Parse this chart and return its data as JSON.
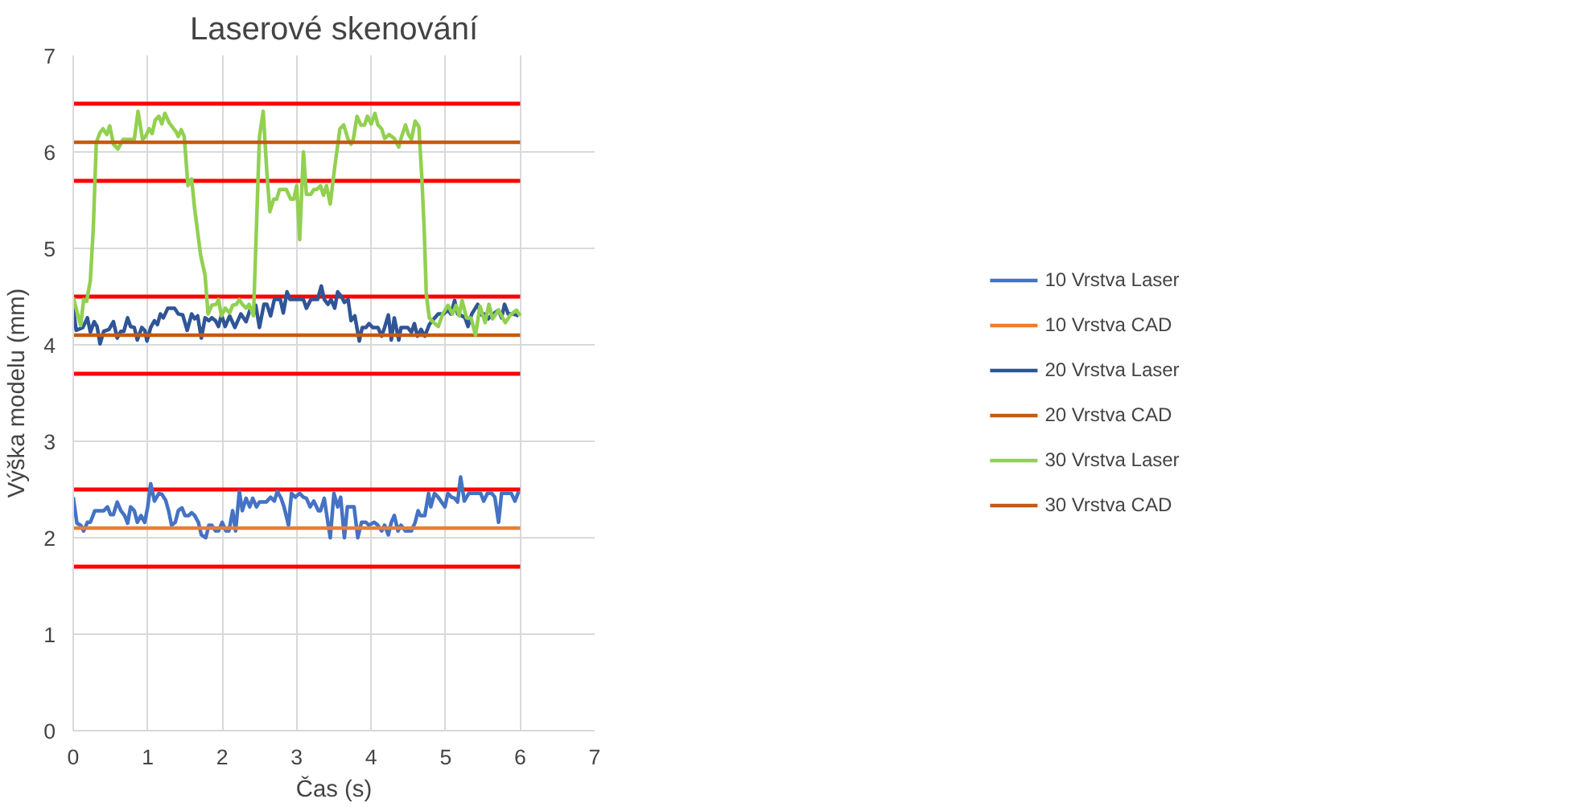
{
  "chart_data": {
    "type": "line",
    "title": "Laserové skenování",
    "xlabel": "Čas (s)",
    "ylabel": "Výška modelu (mm)",
    "xlim": [
      0,
      7
    ],
    "xticks": [
      0,
      1,
      2,
      3,
      4,
      5,
      6,
      7
    ],
    "ylim": [
      0,
      7
    ],
    "yticks": [
      0,
      1,
      2,
      3,
      4,
      5,
      6,
      7
    ],
    "grid": true,
    "legend": "right",
    "marker": "none",
    "line_style": "solid",
    "series": [
      {
        "name": "10 Vrstva Laser",
        "color": "#4472c4",
        "x": [
          0,
          0.05,
          0.1,
          0.14,
          0.19,
          0.23,
          0.29,
          0.41,
          0.46,
          0.5,
          0.54,
          0.59,
          0.64,
          0.69,
          0.73,
          0.77,
          0.82,
          0.86,
          0.91,
          0.96,
          1.0,
          1.04,
          1.09,
          1.15,
          1.19,
          1.24,
          1.28,
          1.32,
          1.37,
          1.41,
          1.46,
          1.5,
          1.55,
          1.59,
          1.63,
          1.68,
          1.72,
          1.78,
          1.82,
          1.86,
          1.91,
          1.95,
          2.0,
          2.05,
          2.09,
          2.14,
          2.18,
          2.23,
          2.27,
          2.32,
          2.37,
          2.41,
          2.46,
          2.5,
          2.59,
          2.65,
          2.7,
          2.74,
          2.79,
          2.83,
          2.89,
          2.93,
          2.98,
          3.04,
          3.09,
          3.13,
          3.18,
          3.23,
          3.29,
          3.32,
          3.37,
          3.41,
          3.45,
          3.5,
          3.55,
          3.59,
          3.64,
          3.68,
          3.77,
          3.82,
          3.87,
          3.93,
          3.97,
          4.04,
          4.09,
          4.14,
          4.18,
          4.23,
          4.27,
          4.31,
          4.36,
          4.4,
          4.46,
          4.54,
          4.59,
          4.63,
          4.66,
          4.72,
          4.77,
          4.8,
          4.85,
          4.9,
          4.99,
          5.03,
          5.08,
          5.12,
          5.16,
          5.2,
          5.25,
          5.31,
          5.47,
          5.51,
          5.56,
          5.62,
          5.66,
          5.71,
          5.75,
          5.88,
          5.93,
          5.98
        ],
        "values": [
          2.42,
          2.15,
          2.13,
          2.07,
          2.16,
          2.16,
          2.28,
          2.28,
          2.32,
          2.24,
          2.24,
          2.37,
          2.28,
          2.23,
          2.15,
          2.32,
          2.28,
          2.16,
          2.23,
          2.16,
          2.32,
          2.56,
          2.38,
          2.46,
          2.45,
          2.39,
          2.28,
          2.13,
          2.16,
          2.28,
          2.31,
          2.23,
          2.23,
          2.26,
          2.23,
          2.16,
          2.03,
          2.0,
          2.13,
          2.13,
          2.07,
          2.07,
          2.16,
          2.07,
          2.07,
          2.28,
          2.07,
          2.48,
          2.28,
          2.41,
          2.32,
          2.41,
          2.32,
          2.37,
          2.37,
          2.42,
          2.38,
          2.48,
          2.41,
          2.32,
          2.13,
          2.46,
          2.42,
          2.46,
          2.42,
          2.41,
          2.32,
          2.38,
          2.28,
          2.28,
          2.41,
          2.2,
          2.0,
          2.46,
          2.32,
          2.42,
          2.0,
          2.32,
          2.32,
          2.0,
          2.16,
          2.16,
          2.13,
          2.16,
          2.13,
          2.07,
          2.13,
          2.03,
          2.16,
          2.23,
          2.07,
          2.13,
          2.07,
          2.07,
          2.16,
          2.28,
          2.23,
          2.23,
          2.46,
          2.32,
          2.46,
          2.42,
          2.32,
          2.46,
          2.42,
          2.41,
          2.37,
          2.63,
          2.38,
          2.46,
          2.46,
          2.38,
          2.46,
          2.46,
          2.42,
          2.16,
          2.46,
          2.46,
          2.38,
          2.48
        ]
      },
      {
        "name": "10 Vrstva CAD",
        "color": "#ed7d31",
        "x": [
          0,
          6
        ],
        "values": [
          2.1,
          2.1
        ]
      },
      {
        "name": "20 Vrstva Laser",
        "color": "#2f5597",
        "x": [
          0,
          0.04,
          0.13,
          0.19,
          0.23,
          0.28,
          0.32,
          0.36,
          0.41,
          0.48,
          0.54,
          0.59,
          0.64,
          0.68,
          0.73,
          0.77,
          0.82,
          0.86,
          0.92,
          0.96,
          0.99,
          1.04,
          1.09,
          1.13,
          1.17,
          1.21,
          1.27,
          1.36,
          1.41,
          1.47,
          1.53,
          1.59,
          1.63,
          1.67,
          1.72,
          1.77,
          1.82,
          1.86,
          1.91,
          1.95,
          1.99,
          2.04,
          2.1,
          2.17,
          2.25,
          2.32,
          2.38,
          2.42,
          2.45,
          2.5,
          2.56,
          2.6,
          2.65,
          2.7,
          2.78,
          2.82,
          2.87,
          2.91,
          3.09,
          3.13,
          3.19,
          3.28,
          3.33,
          3.37,
          3.42,
          3.46,
          3.51,
          3.55,
          3.6,
          3.64,
          3.69,
          3.73,
          3.78,
          3.84,
          3.88,
          3.93,
          3.97,
          4.02,
          4.09,
          4.14,
          4.18,
          4.23,
          4.27,
          4.31,
          4.37,
          4.4,
          4.49,
          4.54,
          4.58,
          4.62,
          4.67,
          4.72,
          4.78,
          4.82,
          4.9,
          4.97,
          5.03,
          5.07,
          5.12,
          5.16,
          5.22,
          5.26,
          5.3,
          5.35,
          5.43,
          5.48,
          5.52,
          5.57,
          5.62,
          5.71,
          5.75,
          5.79,
          5.84,
          5.91,
          5.98
        ],
        "values": [
          4.38,
          4.15,
          4.18,
          4.28,
          4.13,
          4.24,
          4.19,
          4.01,
          4.14,
          4.16,
          4.24,
          4.07,
          4.14,
          4.14,
          4.28,
          4.19,
          4.18,
          4.05,
          4.18,
          4.15,
          4.04,
          4.18,
          4.25,
          4.21,
          4.32,
          4.28,
          4.38,
          4.38,
          4.32,
          4.31,
          4.15,
          4.32,
          4.27,
          4.3,
          4.07,
          4.28,
          4.25,
          4.28,
          4.25,
          4.19,
          4.31,
          4.19,
          4.3,
          4.18,
          4.32,
          4.24,
          4.38,
          4.32,
          4.41,
          4.18,
          4.42,
          4.42,
          4.3,
          4.47,
          4.47,
          4.33,
          4.55,
          4.47,
          4.47,
          4.38,
          4.47,
          4.47,
          4.61,
          4.47,
          4.42,
          4.47,
          4.38,
          4.55,
          4.5,
          4.44,
          4.47,
          4.25,
          4.3,
          4.04,
          4.18,
          4.18,
          4.22,
          4.18,
          4.18,
          4.09,
          4.18,
          4.31,
          4.05,
          4.28,
          4.05,
          4.18,
          4.18,
          4.13,
          4.22,
          4.09,
          4.16,
          4.09,
          4.21,
          4.25,
          4.32,
          4.32,
          4.36,
          4.32,
          4.46,
          4.32,
          4.3,
          4.28,
          4.19,
          4.32,
          4.42,
          4.31,
          4.32,
          4.27,
          4.31,
          4.36,
          4.28,
          4.42,
          4.32,
          4.32,
          4.3
        ]
      },
      {
        "name": "20 Vrstva CAD",
        "color": "#c55a11",
        "x": [
          0,
          6
        ],
        "values": [
          4.1,
          4.1
        ]
      },
      {
        "name": "30 Vrstva Laser",
        "color": "#92d050",
        "x": [
          0,
          0.1,
          0.14,
          0.18,
          0.23,
          0.27,
          0.31,
          0.36,
          0.4,
          0.45,
          0.49,
          0.54,
          0.6,
          0.67,
          0.82,
          0.87,
          0.93,
          0.97,
          1.02,
          1.06,
          1.1,
          1.15,
          1.19,
          1.23,
          1.29,
          1.38,
          1.41,
          1.45,
          1.49,
          1.54,
          1.59,
          1.63,
          1.71,
          1.77,
          1.81,
          1.86,
          1.92,
          1.95,
          1.99,
          2.04,
          2.1,
          2.14,
          2.19,
          2.23,
          2.27,
          2.32,
          2.36,
          2.42,
          2.5,
          2.55,
          2.6,
          2.64,
          2.69,
          2.73,
          2.77,
          2.86,
          2.92,
          2.96,
          3.0,
          3.04,
          3.09,
          3.13,
          3.19,
          3.23,
          3.27,
          3.32,
          3.36,
          3.4,
          3.45,
          3.51,
          3.58,
          3.63,
          3.69,
          3.73,
          3.76,
          3.81,
          3.86,
          3.91,
          3.95,
          4.0,
          4.05,
          4.09,
          4.14,
          4.18,
          4.24,
          4.31,
          4.37,
          4.4,
          4.46,
          4.5,
          4.54,
          4.59,
          4.64,
          4.68,
          4.71,
          4.74,
          4.78,
          4.84,
          4.9,
          4.96,
          5.03,
          5.09,
          5.14,
          5.18,
          5.22,
          5.28,
          5.34,
          5.4,
          5.46,
          5.53,
          5.58,
          5.63,
          5.71,
          5.8,
          5.87,
          5.95,
          6.0
        ],
        "values": [
          4.49,
          4.2,
          4.47,
          4.45,
          4.67,
          5.22,
          6.1,
          6.2,
          6.24,
          6.18,
          6.27,
          6.08,
          6.03,
          6.13,
          6.13,
          6.42,
          6.13,
          6.16,
          6.24,
          6.19,
          6.33,
          6.37,
          6.29,
          6.4,
          6.3,
          6.21,
          6.16,
          6.23,
          6.16,
          5.65,
          5.72,
          5.41,
          4.93,
          4.72,
          4.32,
          4.41,
          4.42,
          4.47,
          4.3,
          4.38,
          4.33,
          4.41,
          4.42,
          4.47,
          4.42,
          4.38,
          4.42,
          4.3,
          6.16,
          6.42,
          5.78,
          5.38,
          5.51,
          5.51,
          5.61,
          5.61,
          5.51,
          5.51,
          5.65,
          5.09,
          6.0,
          5.56,
          5.56,
          5.61,
          5.61,
          5.65,
          5.55,
          5.65,
          5.46,
          5.84,
          6.24,
          6.28,
          6.13,
          6.08,
          6.13,
          6.37,
          6.28,
          6.28,
          6.37,
          6.29,
          6.4,
          6.28,
          6.24,
          6.14,
          6.18,
          6.14,
          6.05,
          6.14,
          6.28,
          6.18,
          6.13,
          6.32,
          6.26,
          5.73,
          5.22,
          4.52,
          4.28,
          4.23,
          4.19,
          4.32,
          4.41,
          4.32,
          4.41,
          4.3,
          4.46,
          4.28,
          4.28,
          4.1,
          4.4,
          4.23,
          4.42,
          4.27,
          4.36,
          4.23,
          4.31,
          4.36,
          4.3
        ]
      },
      {
        "name": "30 Vrstva CAD",
        "color": "#c55a11",
        "x": [
          0,
          6
        ],
        "values": [
          6.1,
          6.1
        ]
      }
    ],
    "ref_lines": [
      {
        "axis": "y",
        "value": 1.7,
        "color": "#ff0000"
      },
      {
        "axis": "y",
        "value": 2.5,
        "color": "#ff0000"
      },
      {
        "axis": "y",
        "value": 3.7,
        "color": "#ff0000"
      },
      {
        "axis": "y",
        "value": 4.5,
        "color": "#ff0000"
      },
      {
        "axis": "y",
        "value": 5.7,
        "color": "#ff0000"
      },
      {
        "axis": "y",
        "value": 6.5,
        "color": "#ff0000"
      }
    ]
  }
}
